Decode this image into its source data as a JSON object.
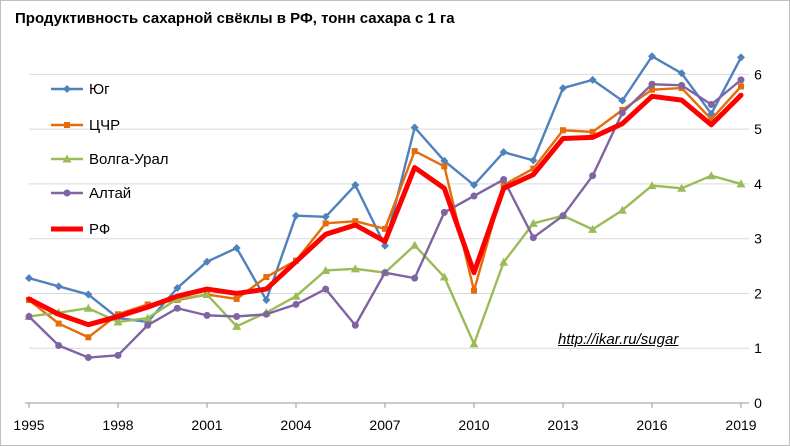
{
  "chart_data": {
    "type": "line",
    "title": "Продуктивность сахарной свёклы в РФ, тонн сахара с 1 га",
    "annotation": "http://ikar.ru/sugar",
    "x": [
      1995,
      1996,
      1997,
      1998,
      1999,
      2000,
      2001,
      2002,
      2003,
      2004,
      2005,
      2006,
      2007,
      2008,
      2009,
      2010,
      2011,
      2012,
      2013,
      2014,
      2015,
      2016,
      2017,
      2018,
      2019
    ],
    "x_tick_labels": [
      "1995",
      "1998",
      "2001",
      "2004",
      "2007",
      "2010",
      "2013",
      "2016",
      "2019"
    ],
    "y_tick_labels": [
      "0",
      "1",
      "2",
      "3",
      "4",
      "5",
      "6"
    ],
    "xlim": [
      1995,
      2019
    ],
    "ylim": [
      0,
      6.5
    ],
    "grid": "horizontal",
    "legend_position": "left",
    "series": [
      {
        "name": "Юг",
        "color": "#4f81bd",
        "marker": "diamond",
        "values": [
          2.28,
          2.13,
          1.98,
          1.55,
          1.48,
          2.1,
          2.58,
          2.83,
          1.88,
          3.42,
          3.4,
          3.98,
          2.87,
          5.03,
          4.42,
          3.98,
          4.58,
          4.43,
          5.75,
          5.9,
          5.52,
          6.33,
          6.02,
          5.28,
          6.31
        ]
      },
      {
        "name": "ЦЧР",
        "color": "#e46c0a",
        "marker": "square",
        "values": [
          1.88,
          1.45,
          1.2,
          1.62,
          1.8,
          1.88,
          1.98,
          1.9,
          2.3,
          2.6,
          3.28,
          3.32,
          3.18,
          4.6,
          4.32,
          2.05,
          3.98,
          4.28,
          4.98,
          4.95,
          5.35,
          5.72,
          5.75,
          5.18,
          5.78
        ]
      },
      {
        "name": "Волга-Урал",
        "color": "#9bbb59",
        "marker": "triangle",
        "values": [
          1.58,
          1.65,
          1.73,
          1.48,
          1.55,
          1.9,
          1.98,
          1.4,
          1.65,
          1.95,
          2.42,
          2.45,
          2.38,
          2.88,
          2.3,
          1.08,
          2.57,
          3.28,
          3.42,
          3.17,
          3.52,
          3.97,
          3.92,
          4.15,
          4.0
        ]
      },
      {
        "name": "Алтай",
        "color": "#8064a2",
        "marker": "circle",
        "values": [
          1.58,
          1.05,
          0.83,
          0.87,
          1.42,
          1.73,
          1.6,
          1.58,
          1.62,
          1.8,
          2.08,
          1.42,
          2.38,
          2.28,
          3.48,
          3.78,
          4.08,
          3.02,
          3.42,
          4.15,
          5.3,
          5.82,
          5.8,
          5.45,
          5.9
        ]
      },
      {
        "name": "РФ",
        "color": "#ff0000",
        "marker": "none",
        "values": [
          1.9,
          1.62,
          1.43,
          1.58,
          1.75,
          1.95,
          2.08,
          2.0,
          2.08,
          2.58,
          3.08,
          3.25,
          2.95,
          4.3,
          3.92,
          2.38,
          3.92,
          4.17,
          4.83,
          4.85,
          5.1,
          5.6,
          5.53,
          5.08,
          5.62
        ]
      }
    ]
  }
}
